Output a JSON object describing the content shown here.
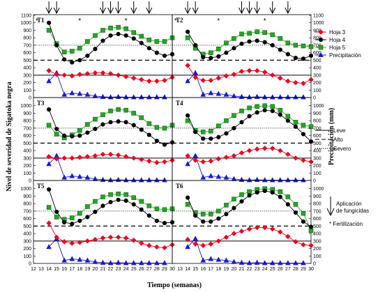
{
  "chart_data": {
    "type": "line",
    "x_ticks": [
      12,
      13,
      14,
      15,
      16,
      17,
      18,
      19,
      20,
      21,
      22,
      23,
      24,
      25,
      26,
      27,
      28,
      29,
      30
    ],
    "y_ticks": [
      0,
      100,
      200,
      300,
      400,
      500,
      600,
      700,
      800,
      900,
      1000,
      1100
    ],
    "ylim": [
      0,
      1100
    ],
    "xlim": [
      12,
      30
    ],
    "xlabel": "Tiempo (semanas)",
    "ylabel_left": "Nivel de severidad de Sigatoka negra",
    "ylabel_right": "Precipitación (mm)",
    "grid": false,
    "legend": {
      "placement": "right",
      "items": [
        {
          "label": "Hoja 3",
          "kind": "series",
          "color": "#e8001c",
          "marker": "diamond"
        },
        {
          "label": "Hoja 4",
          "kind": "series",
          "color": "#000000",
          "marker": "circle"
        },
        {
          "label": "Hoja 5",
          "kind": "series",
          "color": "#22a822",
          "marker": "square"
        },
        {
          "label": "Precipitación",
          "kind": "series",
          "color": "#1a1acc",
          "marker": "triangle"
        },
        {
          "label": "Leve",
          "kind": "threshold",
          "style": "solid"
        },
        {
          "label": "Alto",
          "kind": "threshold",
          "style": "dash"
        },
        {
          "label": "Severo",
          "kind": "threshold",
          "style": "dot"
        }
      ]
    },
    "thresholds": {
      "leve": 300,
      "alto": 500,
      "severo": 700
    },
    "annotation_legend": {
      "arrow_label": "Aplicación de fungicidas",
      "star_label": "* Fertilización"
    },
    "fungicide_weeks": [
      14,
      15,
      21,
      22,
      23,
      25,
      27
    ],
    "fertilization_weeks": [
      12,
      18,
      24
    ],
    "precipitation": [
      220,
      330,
      40,
      60,
      50,
      40,
      20,
      10,
      5,
      10,
      5,
      5,
      5,
      5,
      5,
      5
    ],
    "panels": [
      {
        "label": "T1",
        "hoja3": [
          360,
          310,
          300,
          290,
          310,
          320,
          330,
          330,
          320,
          300,
          280,
          260,
          240,
          220,
          220,
          230,
          270
        ],
        "hoja4": [
          1000,
          700,
          510,
          470,
          500,
          560,
          650,
          760,
          830,
          850,
          830,
          790,
          730,
          660,
          600,
          560,
          580
        ],
        "hoja5": [
          900,
          720,
          610,
          620,
          660,
          750,
          830,
          900,
          930,
          940,
          920,
          870,
          820,
          770,
          750,
          750,
          800
        ]
      },
      {
        "label": "T2",
        "hoja3": [
          430,
          270,
          230,
          230,
          260,
          290,
          310,
          350,
          360,
          360,
          340,
          300,
          260,
          220,
          200,
          190,
          240
        ],
        "hoja4": [
          880,
          700,
          540,
          530,
          550,
          600,
          660,
          720,
          750,
          760,
          740,
          700,
          640,
          580,
          530,
          520,
          560
        ],
        "hoja5": [
          800,
          660,
          580,
          600,
          650,
          730,
          790,
          850,
          860,
          880,
          870,
          840,
          790,
          730,
          700,
          690,
          680
        ]
      },
      {
        "label": "T3",
        "hoja3": [
          320,
          290,
          300,
          300,
          310,
          320,
          330,
          350,
          350,
          340,
          320,
          300,
          280,
          260,
          240,
          250,
          270
        ],
        "hoja4": [
          950,
          690,
          600,
          590,
          600,
          640,
          690,
          750,
          780,
          790,
          780,
          740,
          680,
          610,
          530,
          480,
          510
        ],
        "hoja5": [
          740,
          620,
          570,
          610,
          670,
          750,
          820,
          880,
          930,
          950,
          940,
          900,
          840,
          760,
          710,
          700,
          740
        ]
      },
      {
        "label": "T4",
        "hoja3": [
          330,
          270,
          250,
          260,
          290,
          310,
          330,
          370,
          400,
          420,
          430,
          430,
          400,
          350,
          300,
          270,
          250
        ],
        "hoja4": [
          870,
          650,
          560,
          560,
          580,
          630,
          700,
          780,
          860,
          910,
          940,
          930,
          880,
          800,
          720,
          620,
          520
        ],
        "hoja5": [
          800,
          670,
          650,
          660,
          730,
          800,
          870,
          930,
          970,
          990,
          1000,
          990,
          940,
          860,
          780,
          740,
          720
        ]
      },
      {
        "label": "T5",
        "hoja3": [
          540,
          350,
          290,
          270,
          280,
          300,
          320,
          340,
          350,
          350,
          340,
          310,
          270,
          240,
          220,
          210,
          250
        ],
        "hoja4": [
          990,
          690,
          550,
          530,
          570,
          620,
          690,
          770,
          820,
          850,
          840,
          790,
          720,
          640,
          570,
          540,
          550
        ],
        "hoja5": [
          750,
          620,
          590,
          610,
          670,
          760,
          830,
          890,
          920,
          930,
          920,
          880,
          830,
          770,
          730,
          720,
          730
        ]
      },
      {
        "label": "T6",
        "hoja3": [
          320,
          260,
          240,
          260,
          300,
          350,
          400,
          430,
          460,
          480,
          480,
          460,
          420,
          360,
          290,
          250,
          240
        ],
        "hoja4": [
          880,
          640,
          560,
          560,
          600,
          660,
          740,
          830,
          910,
          950,
          970,
          950,
          890,
          790,
          680,
          560,
          490
        ],
        "hoja5": [
          790,
          680,
          660,
          660,
          700,
          780,
          860,
          920,
          960,
          990,
          1000,
          990,
          960,
          890,
          790,
          670,
          440
        ]
      }
    ]
  }
}
